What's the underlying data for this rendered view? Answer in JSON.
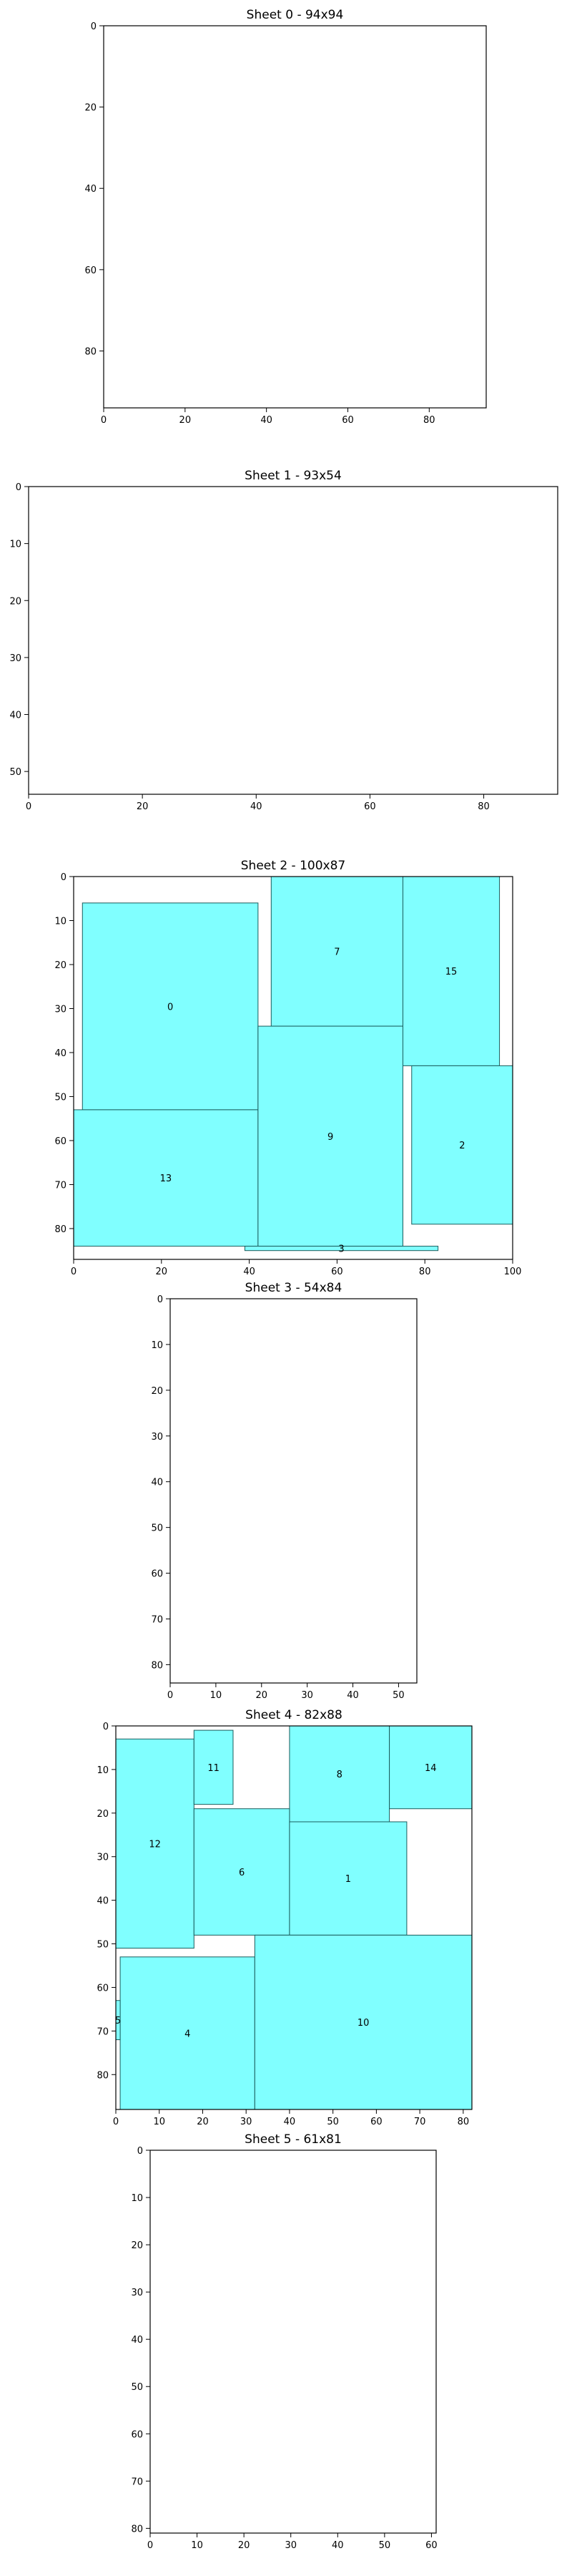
{
  "chart_data": [
    {
      "type": "rectangles",
      "title": "Sheet 0 - 94x94",
      "width": 94,
      "height": 94,
      "xlim": [
        0,
        94
      ],
      "ylim": [
        94,
        0
      ],
      "xticks": [
        0,
        20,
        40,
        60,
        80
      ],
      "yticks": [
        0,
        20,
        40,
        60,
        80
      ],
      "fill_color": "#80ffff",
      "rects": []
    },
    {
      "type": "rectangles",
      "title": "Sheet 1 - 93x54",
      "width": 93,
      "height": 54,
      "xlim": [
        0,
        93
      ],
      "ylim": [
        54,
        0
      ],
      "xticks": [
        0,
        20,
        40,
        60,
        80
      ],
      "yticks": [
        0,
        10,
        20,
        30,
        40,
        50
      ],
      "fill_color": "#80ffff",
      "rects": []
    },
    {
      "type": "rectangles",
      "title": "Sheet 2 - 100x87",
      "width": 100,
      "height": 87,
      "xlim": [
        0,
        100
      ],
      "ylim": [
        87,
        0
      ],
      "xticks": [
        0,
        20,
        40,
        60,
        80,
        100
      ],
      "yticks": [
        0,
        10,
        20,
        30,
        40,
        50,
        60,
        70,
        80
      ],
      "fill_color": "#80ffff",
      "rects": [
        {
          "label": "0",
          "x": 2,
          "y": 6,
          "w": 40,
          "h": 47
        },
        {
          "label": "7",
          "x": 45,
          "y": 0,
          "w": 30,
          "h": 34
        },
        {
          "label": "15",
          "x": 75,
          "y": 0,
          "w": 22,
          "h": 43
        },
        {
          "label": "2",
          "x": 77,
          "y": 43,
          "w": 23,
          "h": 36
        },
        {
          "label": "13",
          "x": 0,
          "y": 53,
          "w": 42,
          "h": 31
        },
        {
          "label": "9",
          "x": 42,
          "y": 34,
          "w": 33,
          "h": 50
        },
        {
          "label": "3",
          "x": 39,
          "y": 84,
          "w": 44,
          "h": 1
        }
      ]
    },
    {
      "type": "rectangles",
      "title": "Sheet 3 - 54x84",
      "width": 54,
      "height": 84,
      "xlim": [
        0,
        54
      ],
      "ylim": [
        84,
        0
      ],
      "xticks": [
        0,
        10,
        20,
        30,
        40,
        50
      ],
      "yticks": [
        0,
        10,
        20,
        30,
        40,
        50,
        60,
        70,
        80
      ],
      "fill_color": "#80ffff",
      "rects": []
    },
    {
      "type": "rectangles",
      "title": "Sheet 4 - 82x88",
      "width": 82,
      "height": 88,
      "xlim": [
        0,
        82
      ],
      "ylim": [
        88,
        0
      ],
      "xticks": [
        0,
        10,
        20,
        30,
        40,
        50,
        60,
        70,
        80
      ],
      "yticks": [
        0,
        10,
        20,
        30,
        40,
        50,
        60,
        70,
        80
      ],
      "fill_color": "#80ffff",
      "rects": [
        {
          "label": "12",
          "x": 0,
          "y": 3,
          "w": 18,
          "h": 48
        },
        {
          "label": "11",
          "x": 18,
          "y": 1,
          "w": 9,
          "h": 17
        },
        {
          "label": "8",
          "x": 40,
          "y": 0,
          "w": 23,
          "h": 22
        },
        {
          "label": "14",
          "x": 63,
          "y": 0,
          "w": 19,
          "h": 19
        },
        {
          "label": "6",
          "x": 18,
          "y": 19,
          "w": 22,
          "h": 29
        },
        {
          "label": "1",
          "x": 40,
          "y": 22,
          "w": 27,
          "h": 26
        },
        {
          "label": "4",
          "x": 1,
          "y": 53,
          "w": 31,
          "h": 35
        },
        {
          "label": "10",
          "x": 32,
          "y": 48,
          "w": 50,
          "h": 40
        },
        {
          "label": "5",
          "x": 0,
          "y": 63,
          "w": 1,
          "h": 9
        }
      ]
    },
    {
      "type": "rectangles",
      "title": "Sheet 5 - 61x81",
      "width": 61,
      "height": 81,
      "xlim": [
        0,
        61
      ],
      "ylim": [
        81,
        0
      ],
      "xticks": [
        0,
        10,
        20,
        30,
        40,
        50,
        60
      ],
      "yticks": [
        0,
        10,
        20,
        30,
        40,
        50,
        60,
        70,
        80
      ],
      "fill_color": "#80ffff",
      "rects": []
    }
  ]
}
